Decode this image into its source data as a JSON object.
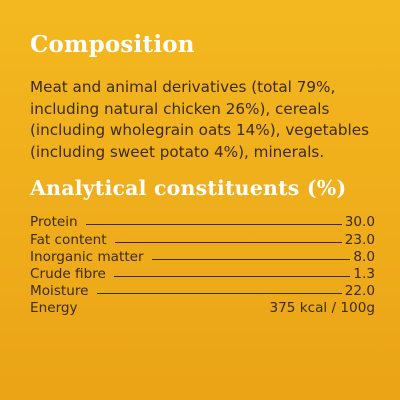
{
  "composition": {
    "heading": "Composition",
    "text": "Meat and animal derivatives (total 79%, including natural chicken 26%), cereals (including wholegrain oats 14%), vegetables (including sweet potato 4%), minerals."
  },
  "analytical": {
    "heading": "Analytical constituents (%)",
    "rows": [
      {
        "label": "Protein",
        "value": "30.0"
      },
      {
        "label": "Fat content",
        "value": "23.0"
      },
      {
        "label": "Inorganic matter",
        "value": "8.0"
      },
      {
        "label": "Crude fibre",
        "value": "1.3"
      },
      {
        "label": "Moisture",
        "value": "22.0"
      },
      {
        "label": "Energy",
        "value": "375 kcal / 100g"
      }
    ]
  },
  "colors": {
    "background": "#efad1b",
    "heading": "#ffffff",
    "text": "#3d2b14"
  }
}
